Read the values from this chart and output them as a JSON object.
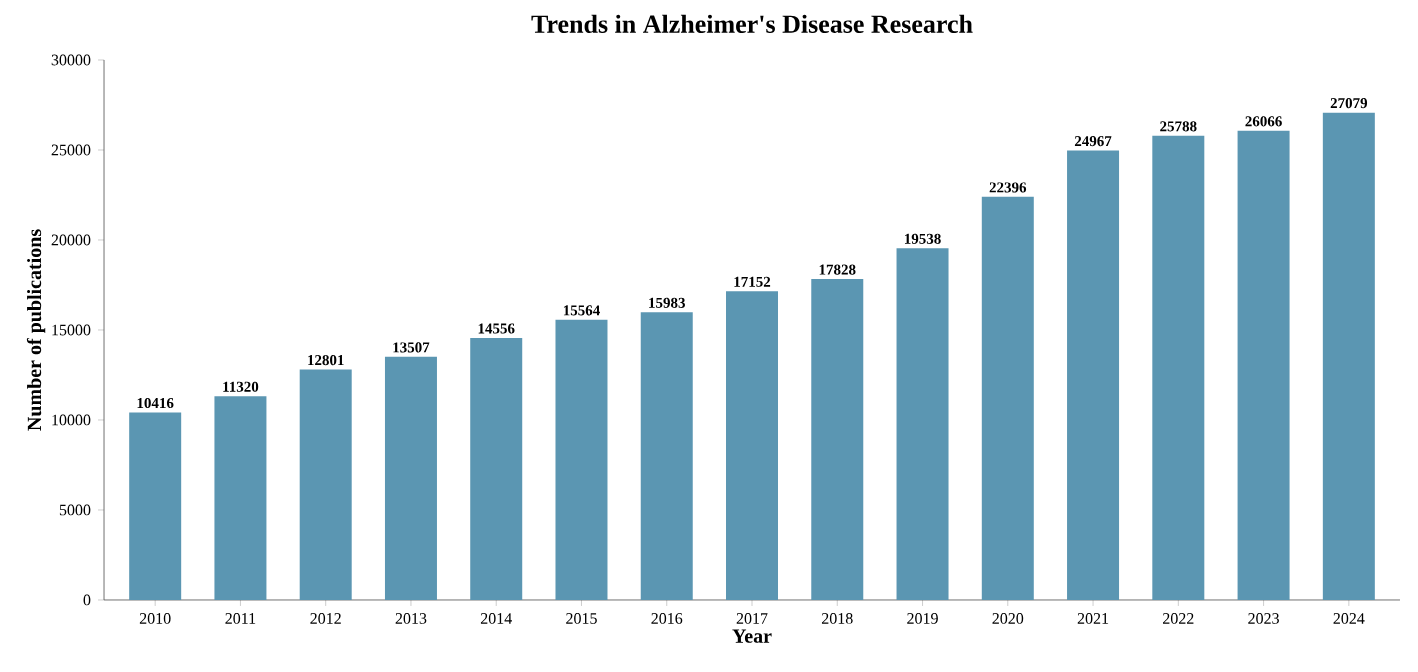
{
  "chart_data": {
    "type": "bar",
    "title": "Trends in Alzheimer's Disease Research",
    "xlabel": "Year",
    "ylabel": "Number of publications",
    "categories": [
      "2010",
      "2011",
      "2012",
      "2013",
      "2014",
      "2015",
      "2016",
      "2017",
      "2018",
      "2019",
      "2020",
      "2021",
      "2022",
      "2023",
      "2024"
    ],
    "values": [
      10416,
      11320,
      12801,
      13507,
      14556,
      15564,
      15983,
      17152,
      17828,
      19538,
      22396,
      24967,
      25788,
      26066,
      27079
    ],
    "color": "#5b96b2",
    "ylim": [
      0,
      30000
    ],
    "yticks": [
      0,
      5000,
      10000,
      15000,
      20000,
      25000,
      30000
    ],
    "data_labels": true
  }
}
